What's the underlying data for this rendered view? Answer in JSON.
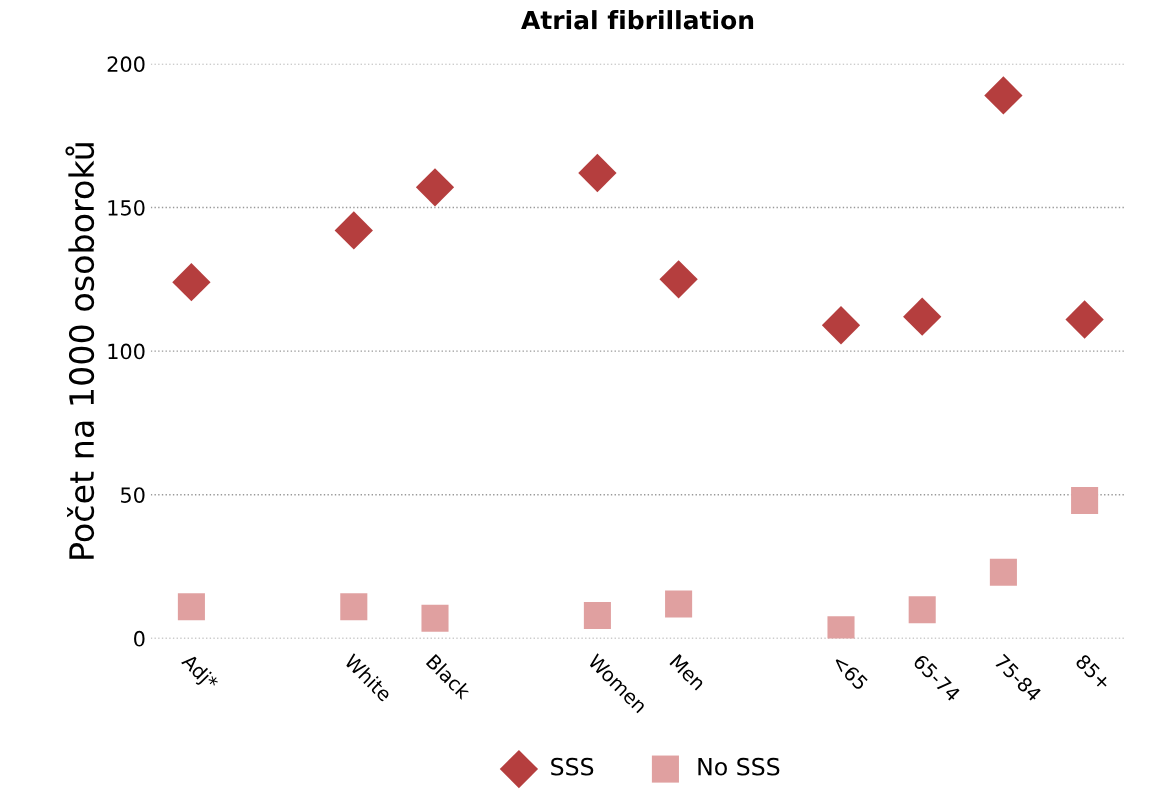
{
  "chart_data": {
    "type": "scatter",
    "title": "Atrial fibrillation",
    "ylabel": "Počet na 1000 osoboroků",
    "categories": [
      "Adj*",
      null,
      "White",
      "Black",
      null,
      "Women",
      "Men",
      null,
      "<65",
      "65-74",
      "75-84",
      "85+"
    ],
    "series": [
      {
        "name": "SSS",
        "color": "#b53e3e",
        "marker": "diamond",
        "values": [
          124,
          null,
          142,
          157,
          null,
          162,
          125,
          null,
          109,
          112,
          189,
          111
        ]
      },
      {
        "name": "No SSS",
        "color": "#e0a0a0",
        "marker": "square",
        "values": [
          11,
          null,
          11,
          7,
          null,
          8,
          12,
          null,
          3,
          10,
          23,
          48
        ]
      }
    ],
    "ylim": [
      0,
      200
    ],
    "yticks": [
      0,
      50,
      100,
      150,
      200
    ],
    "grid": "y",
    "legend": "bottom"
  }
}
